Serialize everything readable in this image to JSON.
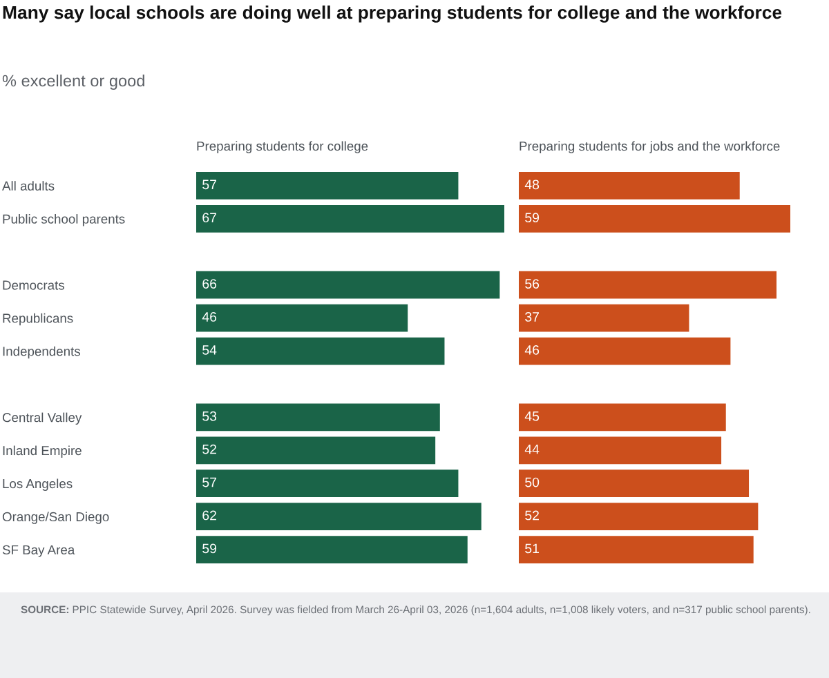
{
  "chart_data": [
    {
      "type": "bar",
      "orientation": "horizontal",
      "title": "Many say local schools are doing well at preparing students for college and the workforce",
      "subtitle": "% excellent or good",
      "annotations": [
        "SOURCE: PPIC Statewide Survey, April 2026. Survey was fielded from March 26-April 03, 2026 (n=1,604 adults, n=1,008 likely voters, and n=317 public school parents)."
      ],
      "categories": [
        "All adults",
        "Public school parents",
        null,
        "Democrats",
        "Republicans",
        "Independents",
        null,
        "Central Valley",
        "Inland Empire",
        "Los Angeles",
        "Orange/San Diego",
        "SF Bay Area"
      ],
      "series": [
        {
          "name": "Preparing students for college",
          "color": "#1a6448",
          "values": [
            57,
            67,
            null,
            66,
            46,
            54,
            null,
            53,
            52,
            57,
            62,
            59
          ]
        }
      ],
      "data_labels": true,
      "tick_labels": "y",
      "grid": false
    },
    {
      "type": "bar",
      "orientation": "horizontal",
      "categories": [
        null,
        null,
        null,
        null,
        null,
        null,
        null,
        null,
        null,
        null,
        null,
        null
      ],
      "series": [
        {
          "name": "Preparing students for jobs and the workforce",
          "color": "#cc4f1c",
          "values": [
            48,
            59,
            null,
            56,
            37,
            46,
            null,
            45,
            44,
            50,
            52,
            51
          ]
        }
      ],
      "data_labels": true,
      "grid": false
    }
  ]
}
